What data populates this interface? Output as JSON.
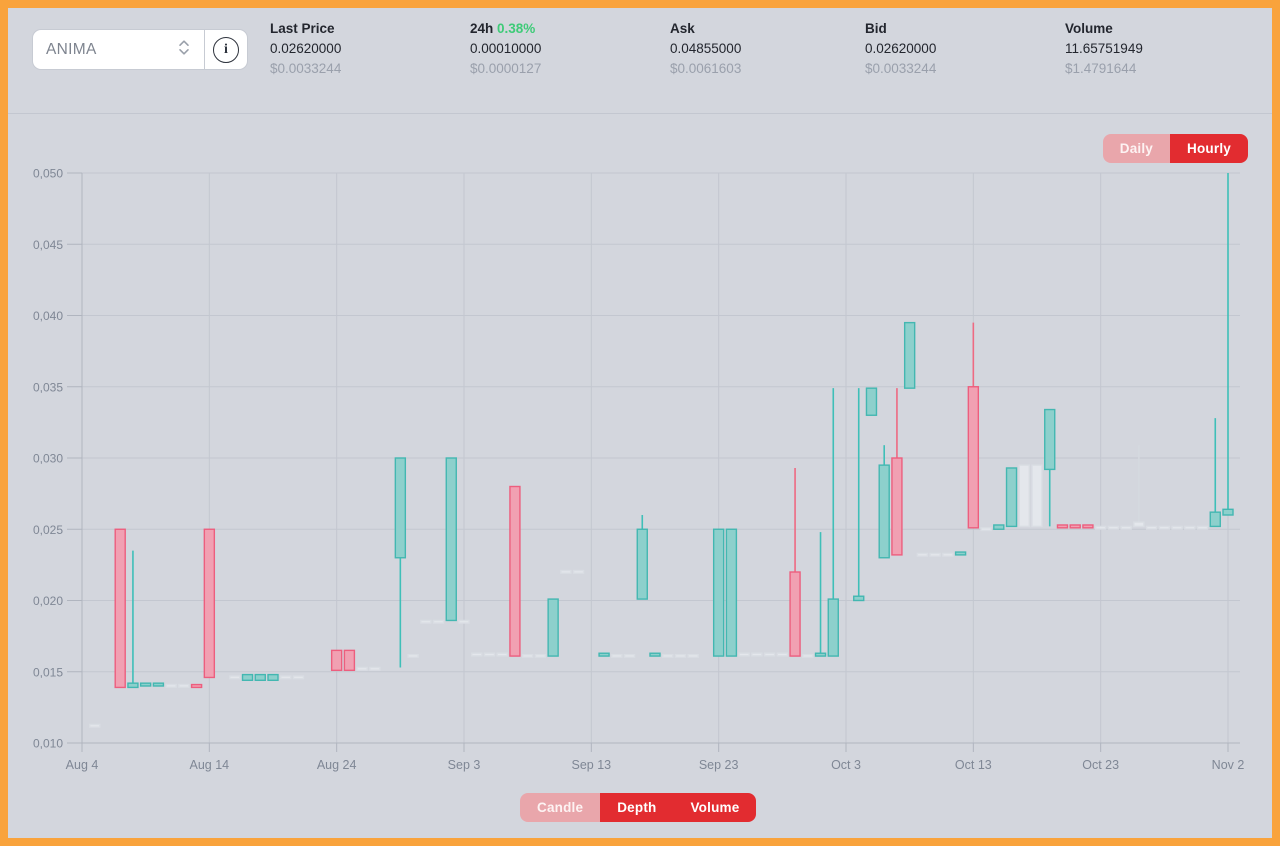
{
  "colors": {
    "orange": "#f9a33c",
    "green": "#3ecb78",
    "red": "#e22c30",
    "pale_red": "#e9a6ab"
  },
  "header": {
    "pair_select": {
      "value": "ANIMA",
      "info_glyph": "i"
    },
    "stats": [
      {
        "label": "Last Price",
        "value": "0.02620000",
        "usd": "$0.0033244"
      },
      {
        "label": "24h",
        "label_extra": "0.38%",
        "value": "0.00010000",
        "usd": "$0.0000127"
      },
      {
        "label": "Ask",
        "value": "0.04855000",
        "usd": "$0.0061603"
      },
      {
        "label": "Bid",
        "value": "0.02620000",
        "usd": "$0.0033244"
      },
      {
        "label": "Volume",
        "value": "11.65751949",
        "usd": "$1.4791644"
      }
    ]
  },
  "timeframe_toggle": {
    "options": [
      {
        "label": "Daily",
        "active": false
      },
      {
        "label": "Hourly",
        "active": true
      }
    ]
  },
  "view_toggle": {
    "options": [
      {
        "label": "Candle",
        "active": false
      },
      {
        "label": "Depth",
        "active": true
      },
      {
        "label": "Volume",
        "active": true
      }
    ]
  },
  "chart_data": {
    "type": "candlestick",
    "title": "ANIMA daily price candles",
    "grid": true,
    "y_axis": {
      "min": 0.01,
      "max": 0.05,
      "step": 0.005,
      "tick_labels": [
        "0,050",
        "0,045",
        "0,040",
        "0,035",
        "0,030",
        "0,025",
        "0,020",
        "0,015",
        "0,010"
      ]
    },
    "x_axis": {
      "day_span": 90,
      "tick_interval_days": 10,
      "tick_labels": [
        "Aug 4",
        "Aug 14",
        "Aug 24",
        "Sep 3",
        "Sep 13",
        "Sep 23",
        "Oct 3",
        "Oct 13",
        "Oct 23",
        "Nov 2"
      ]
    },
    "colors": {
      "up": {
        "fill": "#8dd0cc",
        "stroke": "#43b7b1",
        "wick": "#3fbfb8"
      },
      "down": {
        "fill": "#f1a0b2",
        "stroke": "#ed5e7e",
        "wick": "#ee6a82"
      },
      "light": {
        "fill": "#e4e7ec",
        "stroke": "#d9dde3",
        "wick": "#d5d9df"
      }
    },
    "candles": [
      {
        "day": 1,
        "k": "light",
        "o": 0.0113,
        "c": 0.0112
      },
      {
        "day": 3,
        "k": "down",
        "o": 0.025,
        "c": 0.0139
      },
      {
        "day": 4,
        "k": "up",
        "o": 0.0139,
        "c": 0.0142,
        "h": 0.0235
      },
      {
        "day": 5,
        "k": "up",
        "o": 0.014,
        "c": 0.0142
      },
      {
        "day": 6,
        "k": "up",
        "o": 0.014,
        "c": 0.0142
      },
      {
        "day": 7,
        "k": "light",
        "o": 0.0141,
        "c": 0.0141
      },
      {
        "day": 8,
        "k": "light",
        "o": 0.0141,
        "c": 0.0141
      },
      {
        "day": 9,
        "k": "down",
        "o": 0.0141,
        "c": 0.0139
      },
      {
        "day": 10,
        "k": "down",
        "o": 0.025,
        "c": 0.0146
      },
      {
        "day": 12,
        "k": "light",
        "o": 0.0147,
        "c": 0.0147
      },
      {
        "day": 13,
        "k": "up",
        "o": 0.0144,
        "c": 0.0148
      },
      {
        "day": 14,
        "k": "up",
        "o": 0.0144,
        "c": 0.0148
      },
      {
        "day": 15,
        "k": "up",
        "o": 0.0144,
        "c": 0.0148
      },
      {
        "day": 16,
        "k": "light",
        "o": 0.0147,
        "c": 0.0147
      },
      {
        "day": 17,
        "k": "light",
        "o": 0.0147,
        "c": 0.0147
      },
      {
        "day": 20,
        "k": "down",
        "o": 0.0165,
        "c": 0.0151
      },
      {
        "day": 21,
        "k": "down",
        "o": 0.0165,
        "c": 0.0151
      },
      {
        "day": 22,
        "k": "light",
        "o": 0.0153,
        "c": 0.0153
      },
      {
        "day": 23,
        "k": "light",
        "o": 0.0153,
        "c": 0.0153
      },
      {
        "day": 25,
        "k": "up",
        "o": 0.023,
        "c": 0.03,
        "l": 0.0153
      },
      {
        "day": 26,
        "k": "light",
        "o": 0.0162,
        "c": 0.0162
      },
      {
        "day": 27,
        "k": "light",
        "o": 0.0186,
        "c": 0.0186
      },
      {
        "day": 28,
        "k": "light",
        "o": 0.0186,
        "c": 0.0186
      },
      {
        "day": 29,
        "k": "up",
        "o": 0.0186,
        "c": 0.03
      },
      {
        "day": 30,
        "k": "light",
        "o": 0.0186,
        "c": 0.0186
      },
      {
        "day": 31,
        "k": "light",
        "o": 0.0163,
        "c": 0.0163
      },
      {
        "day": 32,
        "k": "light",
        "o": 0.0163,
        "c": 0.0163
      },
      {
        "day": 33,
        "k": "light",
        "o": 0.0163,
        "c": 0.0163
      },
      {
        "day": 34,
        "k": "down",
        "o": 0.028,
        "c": 0.0161
      },
      {
        "day": 35,
        "k": "light",
        "o": 0.0162,
        "c": 0.0162
      },
      {
        "day": 36,
        "k": "light",
        "o": 0.0162,
        "c": 0.0162
      },
      {
        "day": 37,
        "k": "up",
        "o": 0.0161,
        "c": 0.0201
      },
      {
        "day": 38,
        "k": "light",
        "o": 0.0221,
        "c": 0.0221
      },
      {
        "day": 39,
        "k": "light",
        "o": 0.0221,
        "c": 0.0221
      },
      {
        "day": 41,
        "k": "up",
        "o": 0.0161,
        "c": 0.0163
      },
      {
        "day": 42,
        "k": "light",
        "o": 0.0162,
        "c": 0.0162
      },
      {
        "day": 43,
        "k": "light",
        "o": 0.0162,
        "c": 0.0162
      },
      {
        "day": 44,
        "k": "up",
        "o": 0.0201,
        "c": 0.025,
        "h": 0.026
      },
      {
        "day": 45,
        "k": "up",
        "o": 0.0161,
        "c": 0.0163
      },
      {
        "day": 46,
        "k": "light",
        "o": 0.0162,
        "c": 0.0162
      },
      {
        "day": 47,
        "k": "light",
        "o": 0.0162,
        "c": 0.0162
      },
      {
        "day": 48,
        "k": "light",
        "o": 0.0162,
        "c": 0.0162
      },
      {
        "day": 50,
        "k": "up",
        "o": 0.0161,
        "c": 0.025
      },
      {
        "day": 51,
        "k": "up",
        "o": 0.0161,
        "c": 0.025
      },
      {
        "day": 52,
        "k": "light",
        "o": 0.0163,
        "c": 0.0163
      },
      {
        "day": 53,
        "k": "light",
        "o": 0.0163,
        "c": 0.0163
      },
      {
        "day": 54,
        "k": "light",
        "o": 0.0163,
        "c": 0.0163
      },
      {
        "day": 55,
        "k": "light",
        "o": 0.0163,
        "c": 0.0163
      },
      {
        "day": 56,
        "k": "down",
        "o": 0.022,
        "c": 0.0161,
        "h": 0.0293
      },
      {
        "day": 57,
        "k": "light",
        "o": 0.0162,
        "c": 0.0162
      },
      {
        "day": 58,
        "k": "up",
        "o": 0.0161,
        "c": 0.0163,
        "h": 0.0248
      },
      {
        "day": 59,
        "k": "up",
        "o": 0.0161,
        "c": 0.0201,
        "h": 0.0349
      },
      {
        "day": 61,
        "k": "up",
        "o": 0.02,
        "c": 0.0203,
        "h": 0.0349
      },
      {
        "day": 62,
        "k": "up",
        "o": 0.033,
        "c": 0.0349
      },
      {
        "day": 63,
        "k": "up",
        "o": 0.023,
        "c": 0.0295,
        "h": 0.0309
      },
      {
        "day": 64,
        "k": "down",
        "o": 0.03,
        "c": 0.0232,
        "h": 0.0349
      },
      {
        "day": 65,
        "k": "up",
        "o": 0.0349,
        "c": 0.0395
      },
      {
        "day": 66,
        "k": "light",
        "o": 0.0233,
        "c": 0.0233
      },
      {
        "day": 67,
        "k": "light",
        "o": 0.0233,
        "c": 0.0233
      },
      {
        "day": 68,
        "k": "light",
        "o": 0.0233,
        "c": 0.0233
      },
      {
        "day": 69,
        "k": "up",
        "o": 0.0232,
        "c": 0.0234
      },
      {
        "day": 70,
        "k": "down",
        "o": 0.035,
        "c": 0.0251,
        "h": 0.0395
      },
      {
        "day": 71,
        "k": "light",
        "o": 0.0251,
        "c": 0.0251
      },
      {
        "day": 72,
        "k": "up",
        "o": 0.025,
        "c": 0.0253
      },
      {
        "day": 73,
        "k": "up",
        "o": 0.0252,
        "c": 0.0293
      },
      {
        "day": 74,
        "k": "light",
        "o": 0.0252,
        "c": 0.0295
      },
      {
        "day": 75,
        "k": "light",
        "o": 0.0252,
        "c": 0.0295
      },
      {
        "day": 76,
        "k": "up",
        "o": 0.0292,
        "c": 0.0334,
        "l": 0.0252
      },
      {
        "day": 77,
        "k": "down",
        "o": 0.0253,
        "c": 0.0251
      },
      {
        "day": 78,
        "k": "down",
        "o": 0.0253,
        "c": 0.0251
      },
      {
        "day": 79,
        "k": "down",
        "o": 0.0253,
        "c": 0.0251
      },
      {
        "day": 80,
        "k": "light",
        "o": 0.0252,
        "c": 0.0252
      },
      {
        "day": 81,
        "k": "light",
        "o": 0.0252,
        "c": 0.0252
      },
      {
        "day": 82,
        "k": "light",
        "o": 0.0252,
        "c": 0.0252
      },
      {
        "day": 83,
        "k": "light",
        "o": 0.0252,
        "c": 0.0255,
        "h": 0.0309
      },
      {
        "day": 84,
        "k": "light",
        "o": 0.0252,
        "c": 0.0252
      },
      {
        "day": 85,
        "k": "light",
        "o": 0.0252,
        "c": 0.0252
      },
      {
        "day": 86,
        "k": "light",
        "o": 0.0252,
        "c": 0.0252
      },
      {
        "day": 87,
        "k": "light",
        "o": 0.0252,
        "c": 0.0252
      },
      {
        "day": 88,
        "k": "light",
        "o": 0.0252,
        "c": 0.0252
      },
      {
        "day": 89,
        "k": "up",
        "o": 0.0252,
        "c": 0.0262,
        "h": 0.0328
      },
      {
        "day": 90,
        "k": "up",
        "o": 0.026,
        "c": 0.0264,
        "h": 0.05
      }
    ]
  }
}
